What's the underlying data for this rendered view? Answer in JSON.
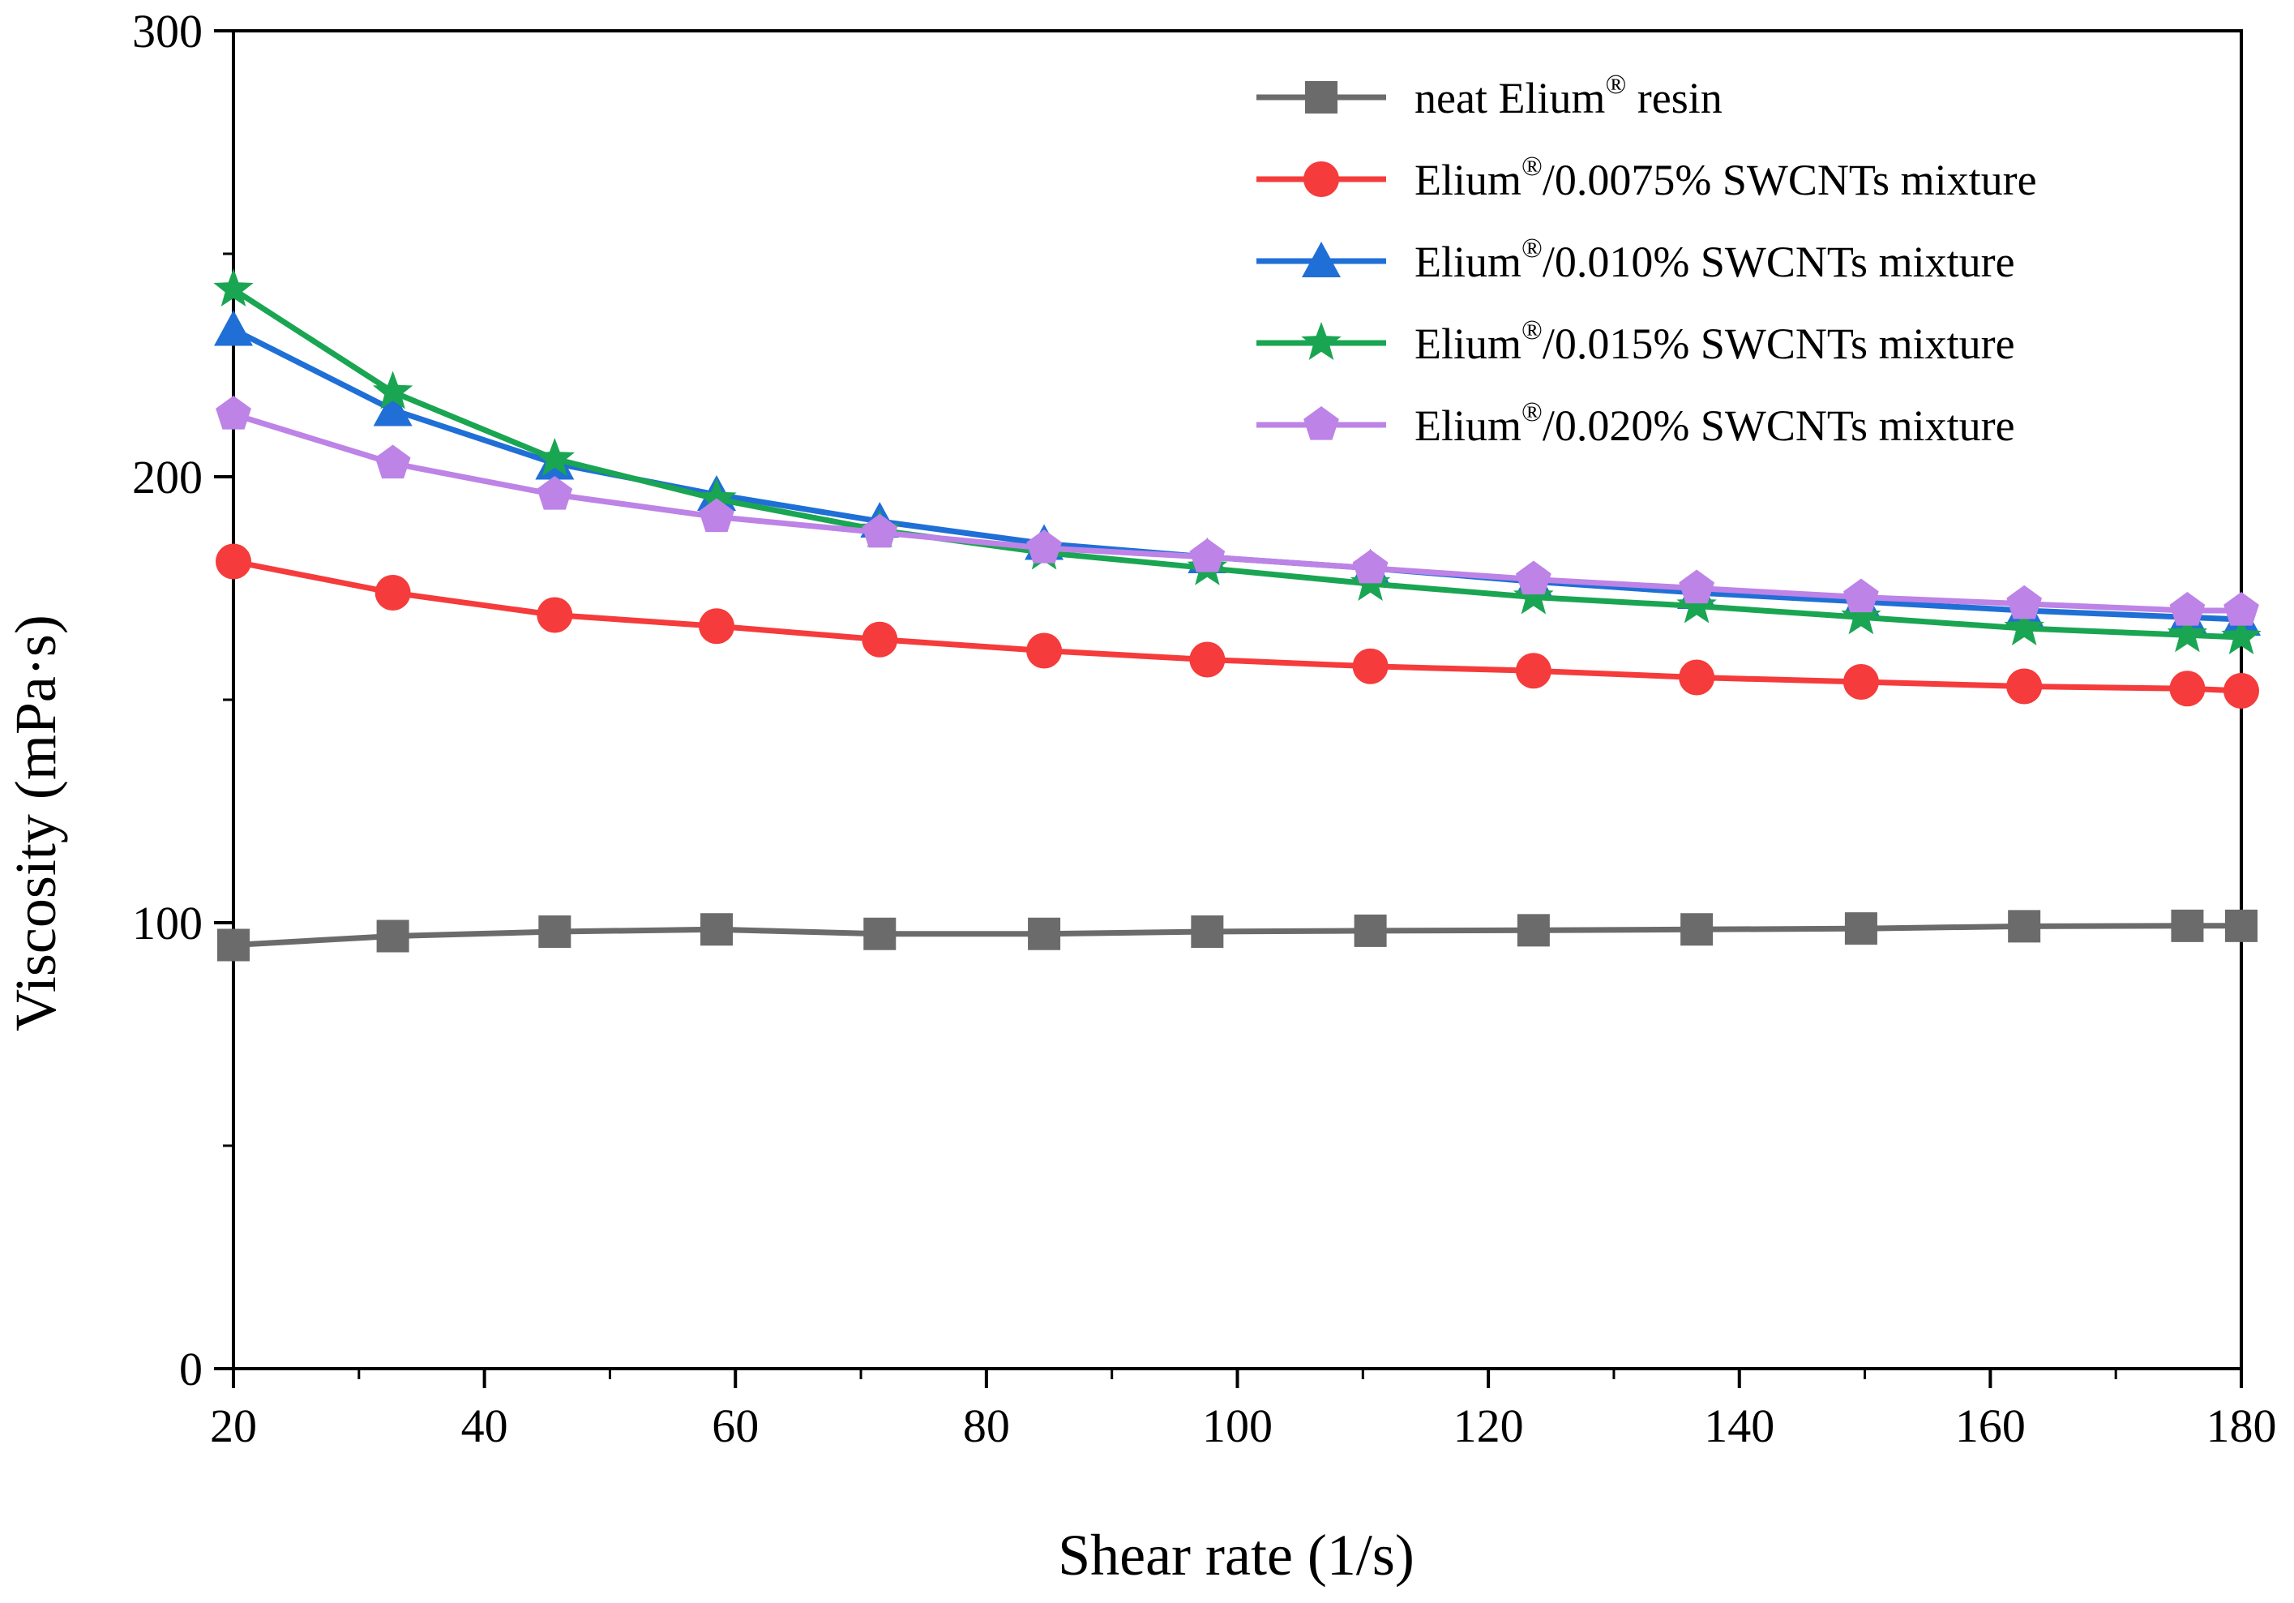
{
  "chart_data": {
    "type": "line",
    "title": "",
    "xlabel": "Shear rate (1/s)",
    "ylabel": "Viscosity (mPa·s)",
    "xlim": [
      20,
      180
    ],
    "ylim": [
      0,
      300
    ],
    "xticks": [
      20,
      40,
      60,
      80,
      100,
      120,
      140,
      160,
      180
    ],
    "yticks": [
      0,
      100,
      200,
      300
    ],
    "x": [
      20,
      32.7,
      45.6,
      58.5,
      71.5,
      84.6,
      97.6,
      110.6,
      123.6,
      136.6,
      149.7,
      162.7,
      175.7,
      180
    ],
    "legend_position": "top-right",
    "series": [
      {
        "name": "neat Elium",
        "name_sup": "®",
        "name_suffix": " resin",
        "color": "#6b6b6b",
        "marker": "square",
        "values": [
          95,
          97,
          98,
          98.5,
          97.5,
          97.5,
          98,
          98.2,
          98.3,
          98.5,
          98.7,
          99.2,
          99.3,
          99.3
        ]
      },
      {
        "name": "Elium",
        "name_sup": "®",
        "name_suffix": "/0.0075% SWCNTs mixture",
        "color": "#f53b3b",
        "marker": "circle",
        "values": [
          181,
          174,
          169,
          166.5,
          163.5,
          161,
          159,
          157.5,
          156.5,
          155,
          154,
          153,
          152.5,
          152
        ]
      },
      {
        "name": "Elium",
        "name_sup": "®",
        "name_suffix": "/0.010% SWCNTs mixture",
        "color": "#1f6fd6",
        "marker": "triangle",
        "values": [
          233,
          215,
          203,
          196,
          190,
          185,
          182,
          179.5,
          176.5,
          174,
          172,
          170,
          168.5,
          168
        ]
      },
      {
        "name": "Elium",
        "name_sup": "®",
        "name_suffix": "/0.015% SWCNTs mixture",
        "color": "#1aa552",
        "marker": "star",
        "values": [
          242,
          219,
          204,
          195,
          188,
          183,
          179.5,
          176,
          173,
          171,
          168.5,
          166,
          164.5,
          164
        ]
      },
      {
        "name": "Elium",
        "name_sup": "®",
        "name_suffix": "/0.020% SWCNTs mixture",
        "color": "#bd83e6",
        "marker": "pentagon",
        "values": [
          214,
          203,
          196,
          191,
          187.5,
          184,
          182,
          179.5,
          177,
          175,
          173,
          171.5,
          170,
          170
        ]
      }
    ]
  }
}
